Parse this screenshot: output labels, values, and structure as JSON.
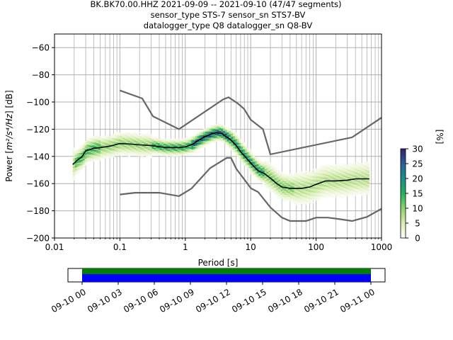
{
  "chart_data": {
    "type": "heatmap",
    "title_lines": [
      "BK.BK70.00.HHZ   2021-09-09 -- 2021-09-10  (47/47 segments)",
      "sensor_type STS-7 sensor_sn STS7-BV",
      "datalogger_type Q8 datalogger_sn Q8-BV"
    ],
    "xlabel": "Period [s]",
    "ylabel_main": "Power [",
    "ylabel_math": "m²/s⁴/Hz",
    "ylabel_tail": "] [dB]",
    "xscale": "log",
    "xlim": [
      0.01,
      1000
    ],
    "ylim": [
      -200,
      -50
    ],
    "x_ticks": [
      {
        "value": 0.01,
        "label": "0.01"
      },
      {
        "value": 0.1,
        "label": "0.1"
      },
      {
        "value": 1,
        "label": "1"
      },
      {
        "value": 10,
        "label": "10"
      },
      {
        "value": 100,
        "label": "100"
      },
      {
        "value": 1000,
        "label": "1000"
      }
    ],
    "y_ticks": [
      {
        "value": -60,
        "label": "−60"
      },
      {
        "value": -80,
        "label": "−80"
      },
      {
        "value": -100,
        "label": "−100"
      },
      {
        "value": -120,
        "label": "−120"
      },
      {
        "value": -140,
        "label": "−140"
      },
      {
        "value": -160,
        "label": "−160"
      },
      {
        "value": -180,
        "label": "−180"
      },
      {
        "value": -200,
        "label": "−200"
      }
    ],
    "grid": true,
    "colorbar": {
      "label": "[%]",
      "range": [
        0,
        30
      ],
      "ticks": [
        "0",
        "5",
        "10",
        "15",
        "20",
        "25",
        "30"
      ],
      "colormap": "pqlx",
      "stops": [
        "#ffffff",
        "#d9ecb0",
        "#8ed26e",
        "#21b35a",
        "#1f8f88",
        "#2c5f9b",
        "#33206b"
      ]
    },
    "new_high_noise_model": [
      [
        0.1,
        -91.5
      ],
      [
        0.22,
        -97.4
      ],
      [
        0.32,
        -110.5
      ],
      [
        0.8,
        -120
      ],
      [
        3.8,
        -98
      ],
      [
        4.6,
        -96.5
      ],
      [
        6.3,
        -101
      ],
      [
        7.9,
        -105
      ],
      [
        10,
        -113
      ],
      [
        15.4,
        -120
      ],
      [
        20,
        -138.5
      ],
      [
        354.8,
        -126
      ],
      [
        1000,
        -111.5
      ]
    ],
    "new_low_noise_model": [
      [
        0.1,
        -168
      ],
      [
        0.17,
        -166.7
      ],
      [
        0.4,
        -166.7
      ],
      [
        0.8,
        -169.2
      ],
      [
        1.24,
        -163.7
      ],
      [
        2.4,
        -148.6
      ],
      [
        4.3,
        -141.1
      ],
      [
        5,
        -141.1
      ],
      [
        6,
        -149
      ],
      [
        10.1,
        -163.5
      ],
      [
        13,
        -166.2
      ],
      [
        20,
        -177.5
      ],
      [
        30,
        -185
      ],
      [
        40,
        -187.5
      ],
      [
        70,
        -187.5
      ],
      [
        100,
        -185
      ],
      [
        150,
        -185
      ],
      [
        220,
        -186
      ],
      [
        354.8,
        -187.5
      ],
      [
        600,
        -184.5
      ],
      [
        1000,
        -178.5
      ]
    ],
    "mode_curve": [
      [
        0.019,
        -146
      ],
      [
        0.022,
        -143
      ],
      [
        0.026,
        -140.5
      ],
      [
        0.03,
        -136
      ],
      [
        0.04,
        -134
      ],
      [
        0.05,
        -133.5
      ],
      [
        0.07,
        -132.5
      ],
      [
        0.1,
        -130.5
      ],
      [
        0.15,
        -131
      ],
      [
        0.2,
        -131.5
      ],
      [
        0.3,
        -132
      ],
      [
        0.5,
        -133.5
      ],
      [
        0.8,
        -133.5
      ],
      [
        1,
        -133
      ],
      [
        1.3,
        -131
      ],
      [
        1.6,
        -128
      ],
      [
        2,
        -125.5
      ],
      [
        2.5,
        -123.5
      ],
      [
        3,
        -122.5
      ],
      [
        3.6,
        -123
      ],
      [
        4.2,
        -125.5
      ],
      [
        5,
        -128
      ],
      [
        6,
        -132
      ],
      [
        7,
        -136.5
      ],
      [
        8.5,
        -141
      ],
      [
        10.5,
        -146
      ],
      [
        13,
        -150.5
      ],
      [
        16,
        -152.5
      ],
      [
        20,
        -156
      ],
      [
        25,
        -160
      ],
      [
        30,
        -162.5
      ],
      [
        40,
        -163.5
      ],
      [
        60,
        -163.5
      ],
      [
        80,
        -162.5
      ],
      [
        100,
        -160.5
      ],
      [
        140,
        -158
      ],
      [
        200,
        -158
      ],
      [
        300,
        -157.5
      ],
      [
        400,
        -156.5
      ],
      [
        500,
        -156.5
      ],
      [
        650,
        -156.5
      ]
    ],
    "density": [
      {
        "x": [
          0.019,
          0.05
        ],
        "center": -140,
        "spread": 6,
        "pct": 14
      },
      {
        "x": [
          0.05,
          0.3
        ],
        "center": -132,
        "spread": 6,
        "pct": 9
      },
      {
        "x": [
          0.3,
          1.2
        ],
        "center": -133,
        "spread": 4,
        "pct": 16
      },
      {
        "x": [
          1.2,
          4.5
        ],
        "center": -126,
        "spread": 4,
        "pct": 24
      },
      {
        "x": [
          4.5,
          16
        ],
        "center": -142,
        "spread": 5,
        "pct": 18
      },
      {
        "x": [
          16,
          45
        ],
        "center": -161,
        "spread": 7,
        "pct": 10
      },
      {
        "x": [
          45,
          650
        ],
        "center": -160,
        "spread": 9,
        "pct": 7
      }
    ],
    "timeline": {
      "ticks": [
        "09-10 00",
        "09-10 03",
        "09-10 06",
        "09-10 09",
        "09-10 12",
        "09-10 15",
        "09-10 18",
        "09-10 21",
        "09-11 00"
      ],
      "bar_colors": [
        "#008000",
        "#0000ff"
      ]
    }
  }
}
